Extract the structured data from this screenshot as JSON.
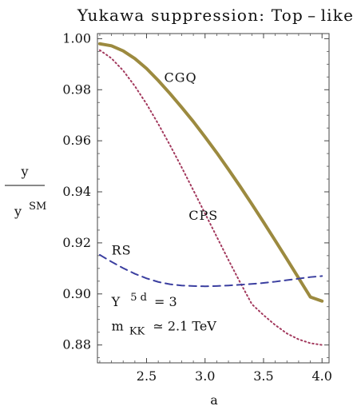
{
  "chart_data": {
    "type": "line",
    "title": "Yukawa suppression: Top – like",
    "xlabel": "a",
    "ylabel": {
      "numerator": "y",
      "denominator_base": "y",
      "denominator_sup": "SM"
    },
    "xlim": [
      2.08,
      4.06
    ],
    "ylim": [
      0.873,
      1.002
    ],
    "x_ticks": [
      "2.5",
      "3.0",
      "3.5",
      "4.0"
    ],
    "x_tick_values": [
      2.5,
      3.0,
      3.5,
      4.0
    ],
    "y_ticks": [
      "0.88",
      "0.90",
      "0.92",
      "0.94",
      "0.96",
      "0.98",
      "1.00"
    ],
    "y_tick_values": [
      0.88,
      0.9,
      0.92,
      0.94,
      0.96,
      0.98,
      1.0
    ],
    "grid": false,
    "series": [
      {
        "name": "CGQ",
        "style": "solid",
        "color": "#9C8A3F",
        "x": [
          2.1,
          2.2,
          2.3,
          2.4,
          2.5,
          2.6,
          2.7,
          2.8,
          2.9,
          3.0,
          3.1,
          3.2,
          3.3,
          3.4,
          3.5,
          3.6,
          3.7,
          3.8,
          3.9,
          4.0
        ],
        "y": [
          0.998,
          0.9972,
          0.9952,
          0.9922,
          0.9883,
          0.9836,
          0.9785,
          0.9731,
          0.9675,
          0.9615,
          0.9553,
          0.9488,
          0.9421,
          0.9352,
          0.9281,
          0.9209,
          0.9136,
          0.9062,
          0.8988,
          0.8972
        ]
      },
      {
        "name": "CPS",
        "style": "dotted",
        "color": "#A33A5E",
        "x": [
          2.1,
          2.2,
          2.3,
          2.4,
          2.5,
          2.6,
          2.7,
          2.8,
          2.9,
          3.0,
          3.1,
          3.2,
          3.3,
          3.4,
          3.5,
          3.6,
          3.7,
          3.8,
          3.9,
          4.0
        ],
        "y": [
          0.9955,
          0.9923,
          0.9875,
          0.9814,
          0.9744,
          0.9666,
          0.9583,
          0.9496,
          0.9406,
          0.9315,
          0.9224,
          0.9133,
          0.9045,
          0.896,
          0.8917,
          0.8878,
          0.8845,
          0.8822,
          0.8807,
          0.88
        ]
      },
      {
        "name": "RS",
        "style": "dashed",
        "color": "#3B3FA0",
        "x": [
          2.1,
          2.2,
          2.3,
          2.4,
          2.5,
          2.6,
          2.7,
          2.8,
          2.9,
          3.0,
          3.1,
          3.2,
          3.3,
          3.4,
          3.5,
          3.6,
          3.7,
          3.8,
          3.9,
          4.0
        ],
        "y": [
          0.9153,
          0.9126,
          0.9101,
          0.9079,
          0.9061,
          0.9047,
          0.9038,
          0.9033,
          0.9031,
          0.903,
          0.9031,
          0.9033,
          0.9036,
          0.9039,
          0.9043,
          0.9048,
          0.9054,
          0.906,
          0.9066,
          0.907
        ]
      }
    ],
    "annotations": {
      "line1_base": "Y",
      "line1_sup": "5 d",
      "line1_rest": "= 3",
      "line2_base": "m",
      "line2_sub": "KK",
      "line2_rest": "≃ 2.1 TeV"
    },
    "label_positions": {
      "CGQ": [
        2.65,
        0.983
      ],
      "CPS": [
        2.86,
        0.929
      ],
      "RS": [
        2.2,
        0.9155
      ]
    },
    "annotation_positions": {
      "line1": [
        2.2,
        0.8953
      ],
      "line2": [
        2.2,
        0.8857
      ]
    }
  }
}
